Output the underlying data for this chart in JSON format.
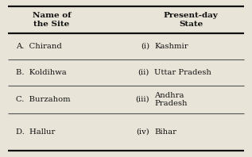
{
  "bg_color": "#e8e4d8",
  "table_bg": "#f5f2ea",
  "header_col1": "Name of\nthe Site",
  "header_col2": "Present-day\nState",
  "rows": [
    {
      "left": "A.  Chirand",
      "mid": "(i)",
      "right": "Kashmir"
    },
    {
      "left": "B.  Koldihwa",
      "mid": "(ii)",
      "right": "Uttar Pradesh"
    },
    {
      "left": "C.  Burzahom",
      "mid": "(iii)",
      "right": "Andhra\nPradesh"
    },
    {
      "left": "D.  Hallur",
      "mid": "(iv)",
      "right": "Bihar"
    }
  ],
  "font_family": "DejaVu Serif",
  "header_fontsize": 7.5,
  "cell_fontsize": 7.2,
  "text_color": "#111111",
  "thick_line_color": "#111111",
  "thin_line_color": "#555555",
  "thick_lw": 1.6,
  "thin_lw": 0.8
}
